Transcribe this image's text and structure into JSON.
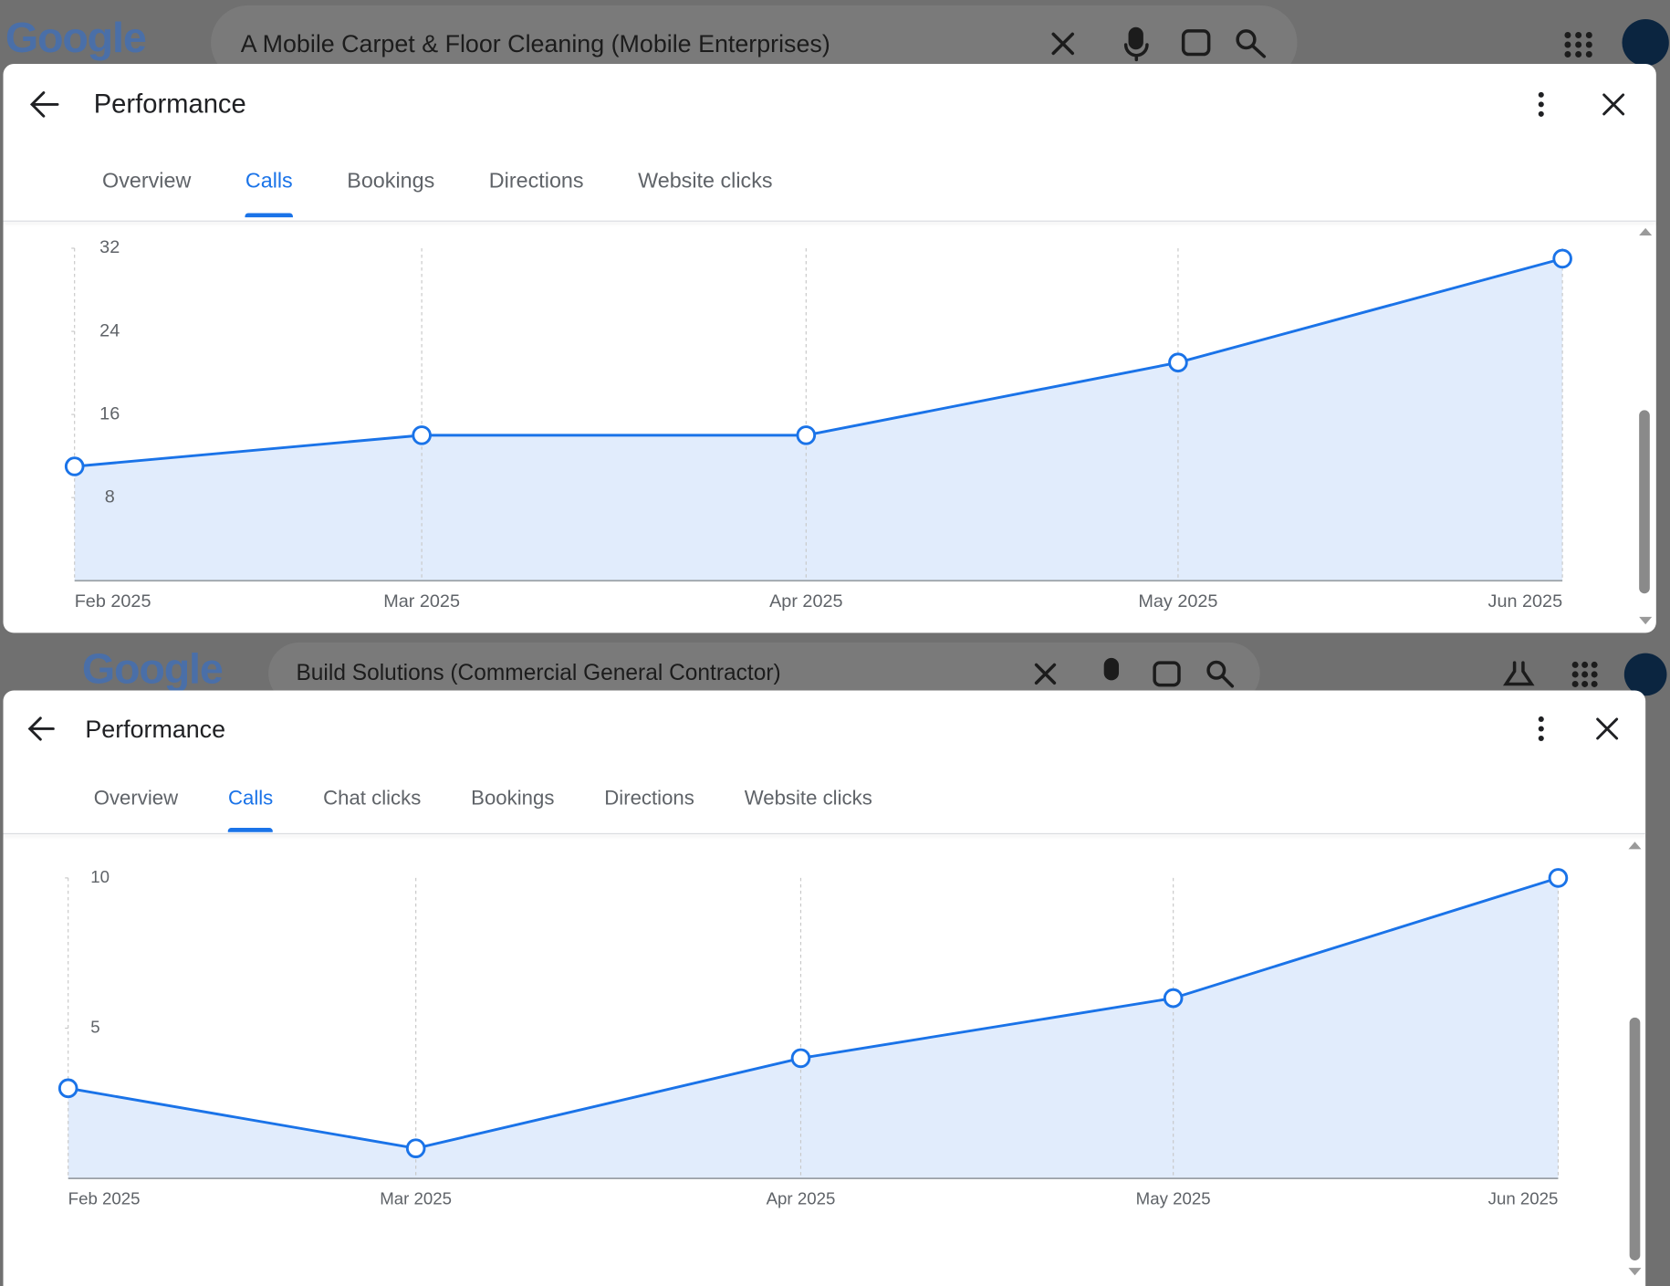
{
  "windows": [
    {
      "logo": "Google",
      "search": "A Mobile Carpet & Floor Cleaning (Mobile Enterprises)",
      "title": "Performance",
      "tabs": [
        "Overview",
        "Calls",
        "Bookings",
        "Directions",
        "Website clicks"
      ],
      "active_tab": 1
    },
    {
      "logo": "Google",
      "search": "Build Solutions (Commercial General Contractor)",
      "title": "Performance",
      "tabs": [
        "Overview",
        "Calls",
        "Chat clicks",
        "Bookings",
        "Directions",
        "Website clicks"
      ],
      "active_tab": 1
    }
  ],
  "chart_data": [
    {
      "type": "line",
      "x": [
        "Feb 2025",
        "Mar 2025",
        "Apr 2025",
        "May 2025",
        "Jun 2025"
      ],
      "values": [
        11,
        14,
        14,
        21,
        31
      ],
      "color": "#1a73e8",
      "area_color": "#e1ecfc",
      "ylim": [
        0,
        32
      ],
      "yticks": [
        8,
        16,
        24,
        32
      ],
      "xgrid": true
    },
    {
      "type": "line",
      "x": [
        "Feb 2025",
        "Mar 2025",
        "Apr 2025",
        "May 2025",
        "Jun 2025"
      ],
      "values": [
        3,
        1,
        4,
        6,
        10
      ],
      "color": "#1a73e8",
      "area_color": "#e1ecfc",
      "ylim": [
        0,
        10
      ],
      "yticks": [
        5,
        10
      ],
      "xgrid": true
    }
  ]
}
